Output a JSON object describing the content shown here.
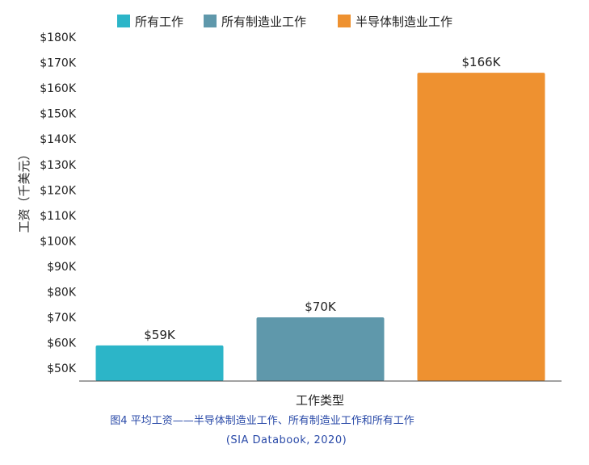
{
  "chart_data": {
    "type": "bar",
    "categories": [
      "所有工作",
      "所有制造业工作",
      "半导体制造业工作"
    ],
    "values": [
      59,
      70,
      166
    ],
    "data_labels": [
      "$59K",
      "$70K",
      "$166K"
    ],
    "colors": [
      "#2cb5c8",
      "#5f98ab",
      "#ee9130"
    ],
    "legend": [
      "所有工作",
      "所有制造业工作",
      "半导体制造业工作"
    ],
    "legend_position": "top",
    "xlabel": "工作类型",
    "ylabel": "工资（千美元）",
    "ylim": [
      45,
      180
    ],
    "yticks": [
      50,
      60,
      70,
      80,
      90,
      100,
      110,
      120,
      130,
      140,
      150,
      160,
      170,
      180
    ],
    "ytick_labels": [
      "$50K",
      "$60K",
      "$70K",
      "$80K",
      "$90K",
      "$100K",
      "$110K",
      "$120K",
      "$130K",
      "$140K",
      "$150K",
      "$160K",
      "$170K",
      "$180K"
    ],
    "grid": false
  },
  "caption": {
    "title": "图4   平均工资——半导体制造业工作、所有制造业工作和所有工作",
    "source": "(SIA Databook, 2020)"
  }
}
